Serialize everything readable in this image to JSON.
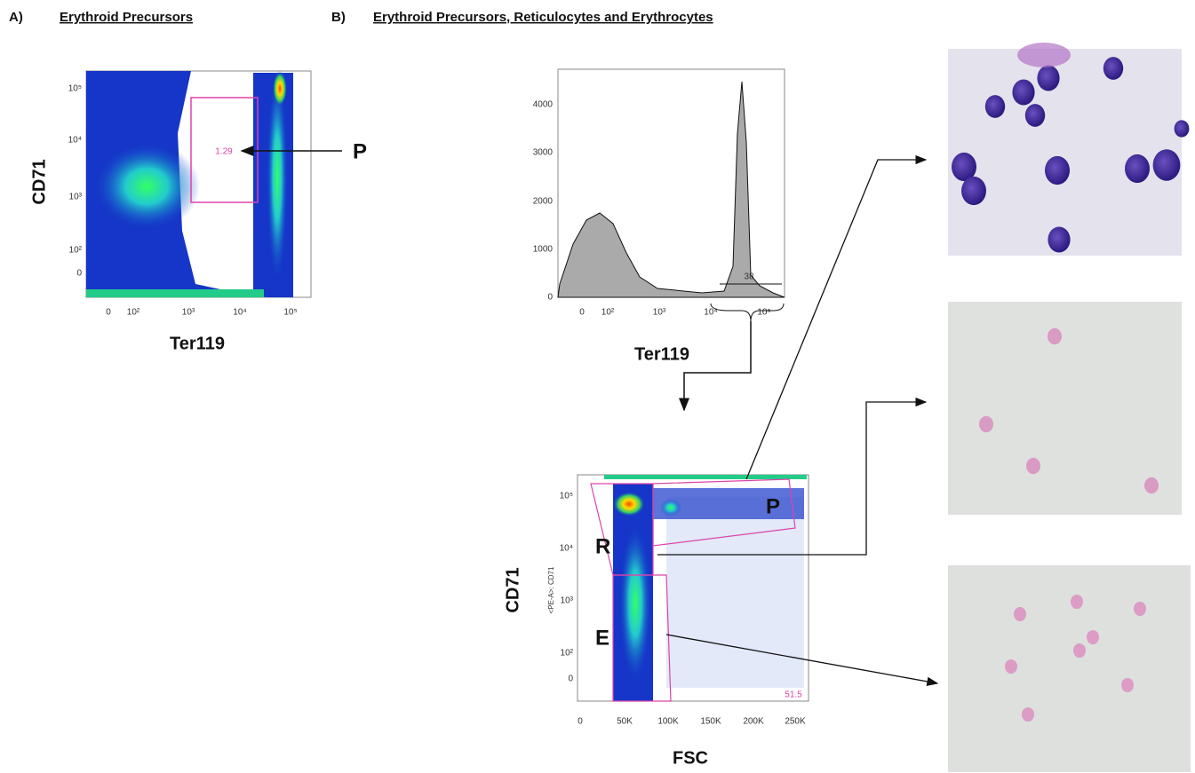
{
  "panel_a": {
    "label": "A)",
    "title": "Erythroid Precursors",
    "y_axis": "CD71",
    "x_axis": "Ter119",
    "y_ticks": [
      "10⁵",
      "10⁴",
      "10³",
      "10²",
      "0"
    ],
    "x_ticks": [
      "0",
      "10²",
      "10³",
      "10⁴",
      "10⁵"
    ],
    "gate_value": "1.29",
    "arrow_label": "P"
  },
  "panel_b": {
    "label": "B)",
    "title": "Erythroid Precursors, Reticulocytes and Erythrocytes",
    "histogram": {
      "x_axis": "Ter119",
      "y_ticks": [
        "4000",
        "3000",
        "2000",
        "1000",
        "0"
      ],
      "x_ticks": [
        "0",
        "10²",
        "10³",
        "10⁴",
        "10⁵"
      ],
      "gate_value": "38"
    },
    "dot_plot": {
      "y_axis": "CD71",
      "y_axis_small": "<PE-A>: CD71",
      "x_axis": "FSC",
      "y_ticks": [
        "10⁵",
        "10⁴",
        "10³",
        "10²",
        "0"
      ],
      "x_ticks": [
        "0",
        "50K",
        "100K",
        "150K",
        "200K",
        "250K"
      ],
      "gates": [
        "R",
        "P",
        "E"
      ],
      "gate_value": "51.5"
    }
  }
}
